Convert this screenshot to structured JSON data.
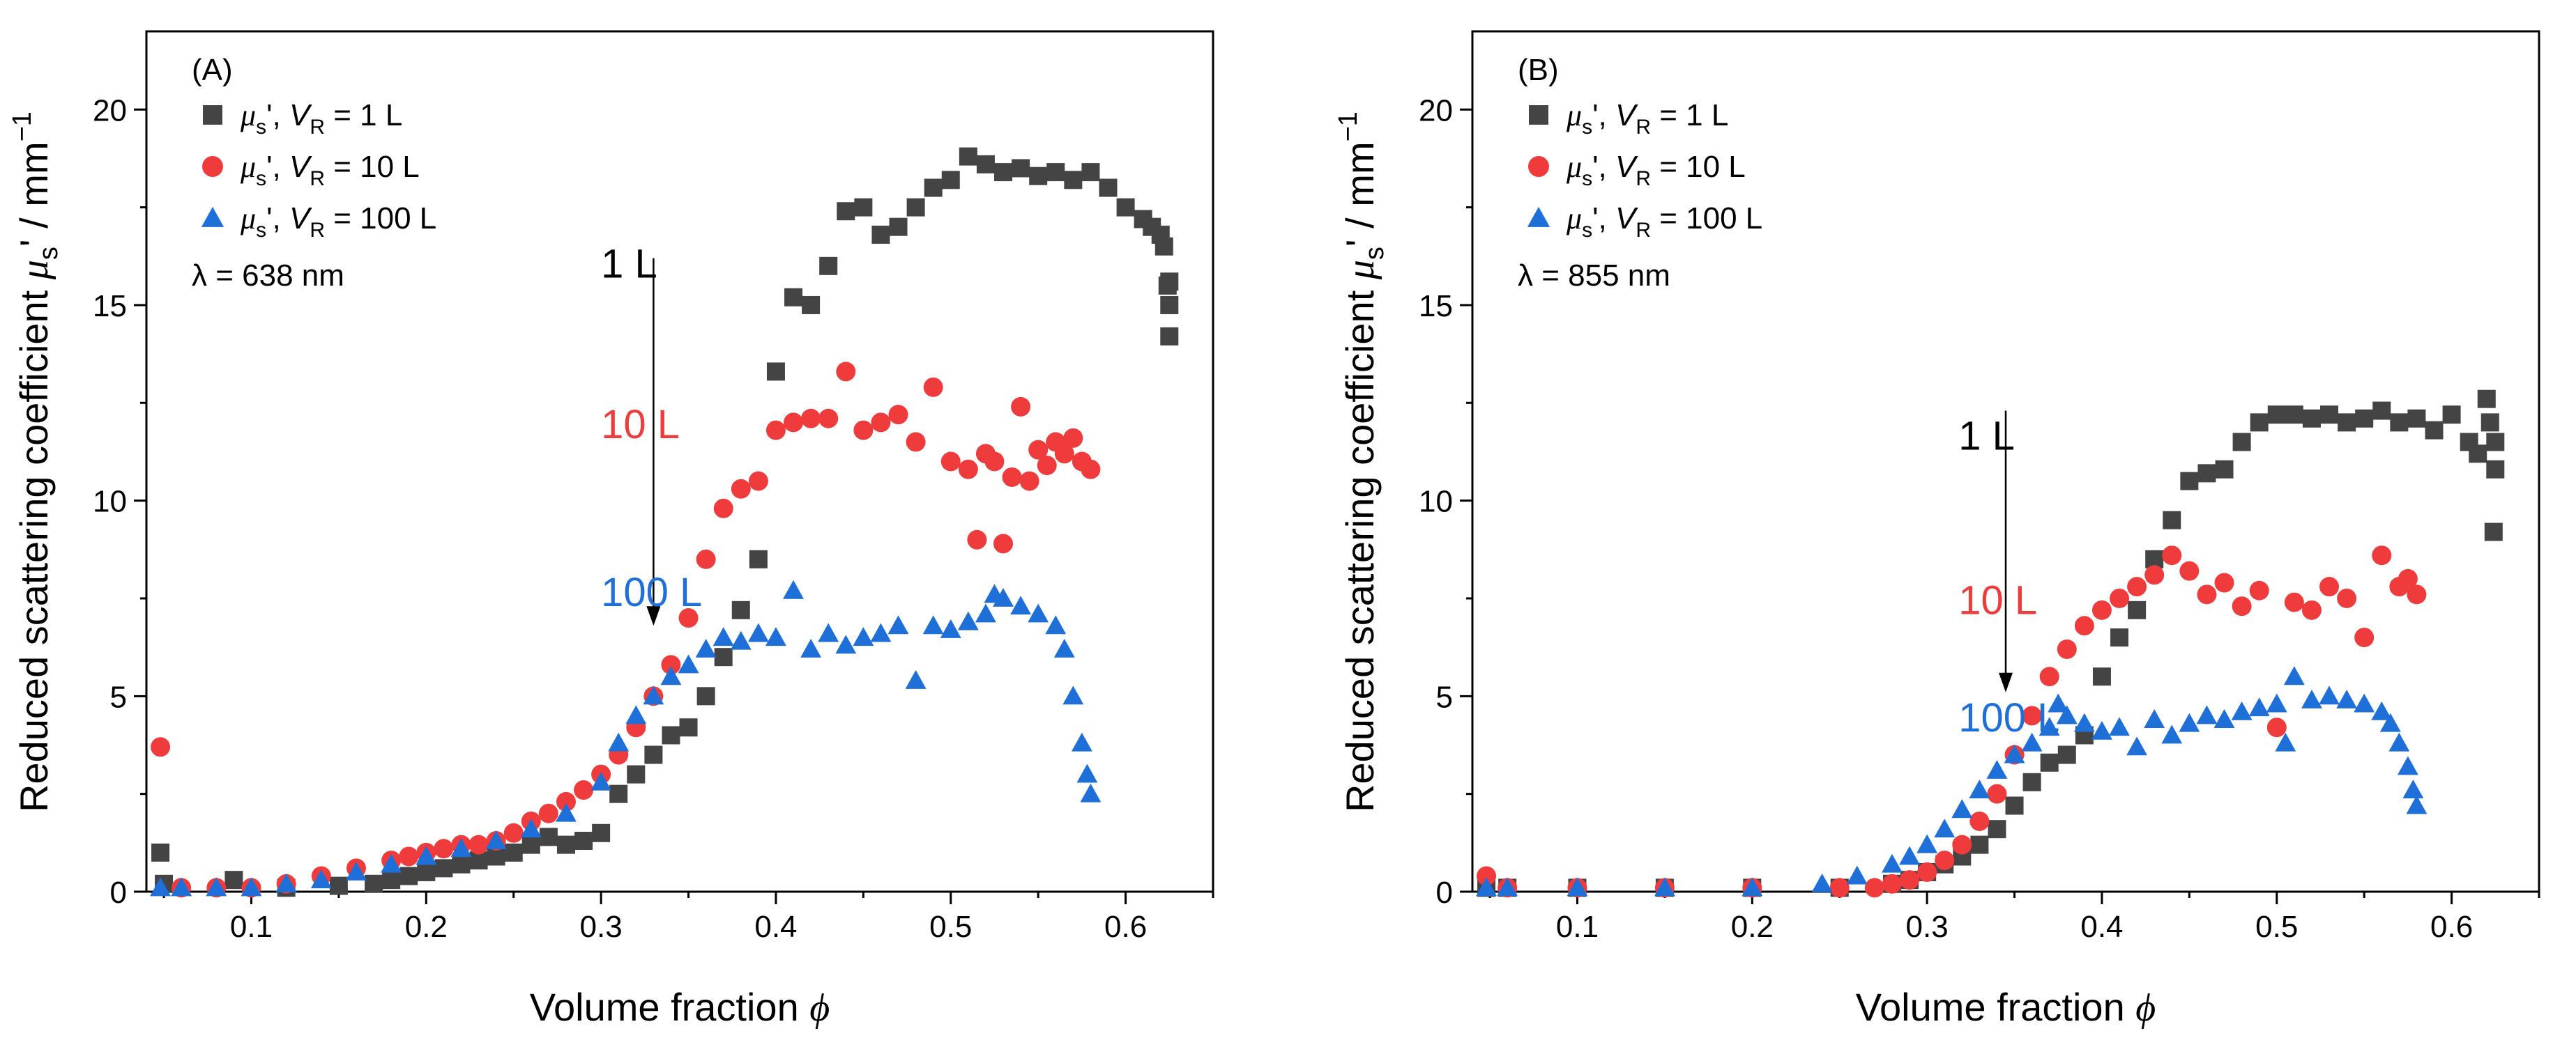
{
  "colors": {
    "series_1L": "#444444",
    "series_10L": "#ef3b3b",
    "series_100L": "#1f6fd8",
    "axis": "#000000"
  },
  "chart_data": [
    {
      "type": "scatter",
      "panel_label": "(A)",
      "xlabel": "Volume fraction",
      "xlabel_symbol": "ϕ",
      "ylabel": "Reduced scattering coefficient μs' / mm⁻¹",
      "ylabel_parts": {
        "prefix": "Reduced scattering coefficient ",
        "mu": "μ",
        "sub": "s",
        "prime": "'",
        "unit": " / mm",
        "exp": "−1"
      },
      "xlim": [
        0.04,
        0.65
      ],
      "ylim": [
        0,
        22
      ],
      "xticks": [
        0.1,
        0.2,
        0.3,
        0.4,
        0.5,
        0.6
      ],
      "xtick_labels": [
        "0.1",
        "0.2",
        "0.3",
        "0.4",
        "0.5",
        "0.6"
      ],
      "yticks": [
        0,
        5,
        10,
        15,
        20
      ],
      "ytick_labels": [
        "0",
        "5",
        "10",
        "15",
        "20"
      ],
      "wavelength_label": "λ = 638 nm",
      "legend_position": "top-left",
      "legend": [
        {
          "mu": "μ",
          "sub": "s",
          "mid": "', ",
          "v": "V",
          "vsub": "R",
          "tail": " = 1 L",
          "marker": "square",
          "color_key": "series_1L"
        },
        {
          "mu": "μ",
          "sub": "s",
          "mid": "', ",
          "v": "V",
          "vsub": "R",
          "tail": " = 10 L",
          "marker": "circle",
          "color_key": "series_10L"
        },
        {
          "mu": "μ",
          "sub": "s",
          "mid": "', ",
          "v": "V",
          "vsub": "R",
          "tail": " = 100 L",
          "marker": "triangle",
          "color_key": "series_100L"
        }
      ],
      "annotations": [
        {
          "text": "1 L",
          "x": 0.3,
          "y": 15.7,
          "color_key": "axis"
        },
        {
          "text": "10 L",
          "x": 0.3,
          "y": 11.6,
          "color_key": "series_10L"
        },
        {
          "text": "100 L",
          "x": 0.3,
          "y": 7.3,
          "color_key": "series_100L"
        }
      ],
      "arrow": {
        "x": 0.33,
        "y_from": 16.2,
        "y_to": 6.8
      },
      "series": [
        {
          "name": "1 L",
          "marker": "square",
          "color_key": "series_1L",
          "x": [
            0.048,
            0.05,
            0.09,
            0.12,
            0.15,
            0.17,
            0.18,
            0.19,
            0.2,
            0.21,
            0.22,
            0.23,
            0.24,
            0.25,
            0.26,
            0.27,
            0.28,
            0.29,
            0.3,
            0.31,
            0.32,
            0.33,
            0.34,
            0.35,
            0.36,
            0.37,
            0.38,
            0.39,
            0.4,
            0.41,
            0.42,
            0.43,
            0.44,
            0.45,
            0.46,
            0.47,
            0.48,
            0.49,
            0.5,
            0.51,
            0.52,
            0.53,
            0.54,
            0.55,
            0.56,
            0.57,
            0.58,
            0.59,
            0.6,
            0.61,
            0.615,
            0.62,
            0.622,
            0.624,
            0.625,
            0.625,
            0.625
          ],
          "y": [
            1.0,
            0.2,
            0.3,
            0.1,
            0.15,
            0.2,
            0.3,
            0.4,
            0.5,
            0.6,
            0.7,
            0.8,
            0.9,
            1.0,
            1.2,
            1.4,
            1.2,
            1.3,
            1.5,
            2.5,
            3.0,
            3.5,
            4.0,
            4.2,
            5.0,
            6.0,
            7.2,
            8.5,
            13.3,
            15.2,
            15.0,
            16.0,
            17.4,
            17.5,
            16.8,
            17.0,
            17.5,
            18.0,
            18.2,
            18.8,
            18.6,
            18.4,
            18.5,
            18.3,
            18.4,
            18.2,
            18.4,
            18.0,
            17.5,
            17.2,
            17.0,
            16.8,
            16.5,
            15.5,
            15.0,
            14.2,
            15.6
          ]
        },
        {
          "name": "10 L",
          "marker": "circle",
          "color_key": "series_10L",
          "x": [
            0.048,
            0.06,
            0.08,
            0.1,
            0.12,
            0.14,
            0.16,
            0.18,
            0.19,
            0.2,
            0.21,
            0.22,
            0.23,
            0.24,
            0.25,
            0.26,
            0.27,
            0.28,
            0.29,
            0.3,
            0.31,
            0.32,
            0.33,
            0.34,
            0.35,
            0.36,
            0.37,
            0.38,
            0.39,
            0.4,
            0.41,
            0.42,
            0.43,
            0.44,
            0.45,
            0.46,
            0.47,
            0.48,
            0.49,
            0.5,
            0.51,
            0.515,
            0.52,
            0.525,
            0.53,
            0.535,
            0.54,
            0.545,
            0.55,
            0.555,
            0.56,
            0.565,
            0.57,
            0.575,
            0.58
          ],
          "y": [
            3.7,
            0.1,
            0.1,
            0.1,
            0.2,
            0.4,
            0.6,
            0.8,
            0.9,
            1.0,
            1.1,
            1.2,
            1.2,
            1.3,
            1.5,
            1.8,
            2.0,
            2.3,
            2.6,
            3.0,
            3.5,
            4.2,
            5.0,
            5.8,
            7.0,
            8.5,
            9.8,
            10.3,
            10.5,
            11.8,
            12.0,
            12.1,
            12.1,
            13.3,
            11.8,
            12.0,
            12.2,
            11.5,
            12.9,
            11.0,
            10.8,
            9.0,
            11.2,
            11.0,
            8.9,
            10.6,
            12.4,
            10.5,
            11.3,
            10.9,
            11.5,
            11.2,
            11.6,
            11.0,
            10.8
          ]
        },
        {
          "name": "100 L",
          "marker": "triangle",
          "color_key": "series_100L",
          "x": [
            0.048,
            0.06,
            0.08,
            0.1,
            0.12,
            0.14,
            0.16,
            0.18,
            0.2,
            0.22,
            0.24,
            0.26,
            0.28,
            0.3,
            0.31,
            0.32,
            0.33,
            0.34,
            0.35,
            0.36,
            0.37,
            0.38,
            0.39,
            0.4,
            0.41,
            0.42,
            0.43,
            0.44,
            0.45,
            0.46,
            0.47,
            0.48,
            0.49,
            0.5,
            0.51,
            0.52,
            0.525,
            0.53,
            0.54,
            0.55,
            0.56,
            0.565,
            0.57,
            0.575,
            0.578,
            0.58
          ],
          "y": [
            0.1,
            0.1,
            0.1,
            0.1,
            0.2,
            0.3,
            0.5,
            0.7,
            0.9,
            1.1,
            1.3,
            1.6,
            2.0,
            2.8,
            3.8,
            4.5,
            5.0,
            5.5,
            5.8,
            6.2,
            6.5,
            6.4,
            6.6,
            6.5,
            7.7,
            6.2,
            6.6,
            6.3,
            6.5,
            6.6,
            6.8,
            5.4,
            6.8,
            6.7,
            6.9,
            7.1,
            7.6,
            7.5,
            7.3,
            7.1,
            6.8,
            6.2,
            5.0,
            3.8,
            3.0,
            2.5
          ]
        }
      ]
    },
    {
      "type": "scatter",
      "panel_label": "(B)",
      "xlabel": "Volume fraction",
      "xlabel_symbol": "ϕ",
      "ylabel": "Reduced scattering coefficient μs' / mm⁻¹",
      "ylabel_parts": {
        "prefix": "Reduced scattering coefficient ",
        "mu": "μ",
        "sub": "s",
        "prime": "'",
        "unit": " / mm",
        "exp": "−1"
      },
      "xlim": [
        0.04,
        0.65
      ],
      "ylim": [
        0,
        22
      ],
      "xticks": [
        0.1,
        0.2,
        0.3,
        0.4,
        0.5,
        0.6
      ],
      "xtick_labels": [
        "0.1",
        "0.2",
        "0.3",
        "0.4",
        "0.5",
        "0.6"
      ],
      "yticks": [
        0,
        5,
        10,
        15,
        20
      ],
      "ytick_labels": [
        "0",
        "5",
        "10",
        "15",
        "20"
      ],
      "wavelength_label": "λ = 855 nm",
      "legend_position": "top-left",
      "legend": [
        {
          "mu": "μ",
          "sub": "s",
          "mid": "', ",
          "v": "V",
          "vsub": "R",
          "tail": " = 1 L",
          "marker": "square",
          "color_key": "series_1L"
        },
        {
          "mu": "μ",
          "sub": "s",
          "mid": "', ",
          "v": "V",
          "vsub": "R",
          "tail": " = 10 L",
          "marker": "circle",
          "color_key": "series_10L"
        },
        {
          "mu": "μ",
          "sub": "s",
          "mid": "', ",
          "v": "V",
          "vsub": "R",
          "tail": " = 100 L",
          "marker": "triangle",
          "color_key": "series_100L"
        }
      ],
      "annotations": [
        {
          "text": "1 L",
          "x": 0.318,
          "y": 11.3,
          "color_key": "axis"
        },
        {
          "text": "10 L",
          "x": 0.318,
          "y": 7.1,
          "color_key": "series_10L"
        },
        {
          "text": "100 L",
          "x": 0.318,
          "y": 4.1,
          "color_key": "series_100L"
        }
      ],
      "arrow": {
        "x": 0.345,
        "y_from": 12.3,
        "y_to": 5.1
      },
      "series": [
        {
          "name": "1 L",
          "marker": "square",
          "color_key": "series_1L",
          "x": [
            0.048,
            0.06,
            0.1,
            0.15,
            0.2,
            0.25,
            0.28,
            0.29,
            0.3,
            0.31,
            0.32,
            0.33,
            0.34,
            0.35,
            0.36,
            0.37,
            0.38,
            0.39,
            0.4,
            0.41,
            0.42,
            0.43,
            0.44,
            0.45,
            0.46,
            0.47,
            0.48,
            0.49,
            0.5,
            0.51,
            0.52,
            0.53,
            0.54,
            0.55,
            0.56,
            0.57,
            0.58,
            0.59,
            0.6,
            0.61,
            0.615,
            0.62,
            0.622,
            0.624,
            0.625,
            0.625
          ],
          "y": [
            0.1,
            0.1,
            0.1,
            0.1,
            0.1,
            0.1,
            0.2,
            0.3,
            0.5,
            0.7,
            0.9,
            1.2,
            1.6,
            2.2,
            2.8,
            3.3,
            3.5,
            4.0,
            5.5,
            6.5,
            7.2,
            8.5,
            9.5,
            10.5,
            10.7,
            10.8,
            11.5,
            12.0,
            12.2,
            12.2,
            12.1,
            12.2,
            12.0,
            12.1,
            12.3,
            12.0,
            12.1,
            11.8,
            12.2,
            11.5,
            11.2,
            12.6,
            12.0,
            9.2,
            11.5,
            10.8
          ]
        },
        {
          "name": "10 L",
          "marker": "circle",
          "color_key": "series_10L",
          "x": [
            0.048,
            0.06,
            0.1,
            0.15,
            0.2,
            0.25,
            0.27,
            0.28,
            0.29,
            0.3,
            0.31,
            0.32,
            0.33,
            0.34,
            0.35,
            0.36,
            0.37,
            0.38,
            0.39,
            0.4,
            0.41,
            0.42,
            0.43,
            0.44,
            0.45,
            0.46,
            0.47,
            0.48,
            0.49,
            0.5,
            0.51,
            0.52,
            0.53,
            0.54,
            0.55,
            0.56,
            0.57,
            0.575,
            0.58
          ],
          "y": [
            0.4,
            0.1,
            0.1,
            0.1,
            0.1,
            0.1,
            0.1,
            0.2,
            0.3,
            0.5,
            0.8,
            1.2,
            1.8,
            2.5,
            3.5,
            4.5,
            5.5,
            6.2,
            6.8,
            7.2,
            7.5,
            7.8,
            8.1,
            8.6,
            8.2,
            7.6,
            7.9,
            7.3,
            7.7,
            4.2,
            7.4,
            7.2,
            7.8,
            7.5,
            6.5,
            8.6,
            7.8,
            8.0,
            7.6
          ]
        },
        {
          "name": "100 L",
          "marker": "triangle",
          "color_key": "series_100L",
          "x": [
            0.048,
            0.06,
            0.1,
            0.15,
            0.2,
            0.24,
            0.26,
            0.28,
            0.29,
            0.3,
            0.31,
            0.32,
            0.33,
            0.34,
            0.35,
            0.36,
            0.37,
            0.375,
            0.38,
            0.39,
            0.4,
            0.41,
            0.42,
            0.43,
            0.44,
            0.45,
            0.46,
            0.47,
            0.48,
            0.49,
            0.5,
            0.505,
            0.51,
            0.52,
            0.53,
            0.54,
            0.55,
            0.56,
            0.565,
            0.57,
            0.575,
            0.578,
            0.58
          ],
          "y": [
            0.1,
            0.1,
            0.1,
            0.1,
            0.1,
            0.2,
            0.4,
            0.7,
            0.9,
            1.2,
            1.6,
            2.1,
            2.6,
            3.1,
            3.5,
            3.8,
            4.2,
            4.8,
            4.5,
            4.3,
            4.1,
            4.2,
            3.7,
            4.4,
            4.0,
            4.3,
            4.5,
            4.4,
            4.6,
            4.7,
            4.8,
            3.8,
            5.5,
            4.9,
            5.0,
            4.9,
            4.8,
            4.6,
            4.3,
            3.8,
            3.2,
            2.6,
            2.2
          ]
        }
      ]
    }
  ]
}
